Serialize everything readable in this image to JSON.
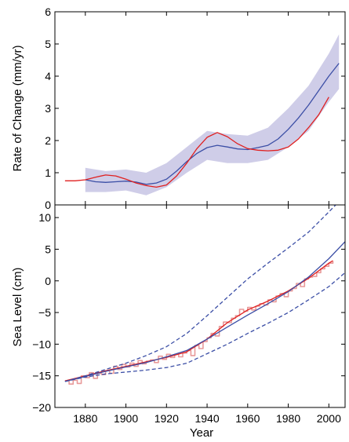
{
  "chart_data": [
    {
      "type": "line",
      "ylabel": "Rate of Change (mm/yr)",
      "xlabel": "",
      "xlim": [
        1865,
        2008
      ],
      "ylim": [
        0,
        6
      ],
      "yticks": [
        0,
        1,
        2,
        3,
        4,
        5,
        6
      ],
      "band": {
        "color": "#cfcde8",
        "x": [
          1880,
          1890,
          1900,
          1910,
          1920,
          1930,
          1940,
          1950,
          1960,
          1970,
          1980,
          1990,
          2000,
          2005
        ],
        "lower": [
          0.4,
          0.4,
          0.45,
          0.3,
          0.55,
          1.0,
          1.4,
          1.3,
          1.3,
          1.4,
          1.8,
          2.3,
          3.2,
          3.6
        ],
        "upper": [
          1.15,
          1.05,
          1.1,
          1.0,
          1.3,
          1.8,
          2.3,
          2.2,
          2.15,
          2.4,
          3.0,
          3.7,
          4.7,
          5.3
        ]
      },
      "series": [
        {
          "color": "#3c4fa6",
          "x": [
            1880,
            1885,
            1890,
            1895,
            1900,
            1905,
            1910,
            1915,
            1920,
            1925,
            1930,
            1935,
            1940,
            1945,
            1950,
            1955,
            1960,
            1965,
            1970,
            1975,
            1980,
            1985,
            1990,
            1995,
            2000,
            2005
          ],
          "y": [
            0.78,
            0.72,
            0.7,
            0.72,
            0.74,
            0.71,
            0.64,
            0.68,
            0.8,
            1.05,
            1.35,
            1.6,
            1.78,
            1.85,
            1.8,
            1.74,
            1.72,
            1.78,
            1.85,
            2.05,
            2.35,
            2.7,
            3.1,
            3.55,
            4.0,
            4.4
          ]
        },
        {
          "color": "#e02020",
          "x": [
            1870,
            1875,
            1880,
            1885,
            1890,
            1895,
            1900,
            1905,
            1910,
            1915,
            1920,
            1925,
            1930,
            1935,
            1940,
            1945,
            1950,
            1955,
            1960,
            1965,
            1970,
            1975,
            1980,
            1985,
            1990,
            1995,
            2000
          ],
          "y": [
            0.75,
            0.75,
            0.78,
            0.86,
            0.93,
            0.9,
            0.8,
            0.68,
            0.6,
            0.55,
            0.62,
            0.9,
            1.3,
            1.75,
            2.1,
            2.25,
            2.12,
            1.9,
            1.75,
            1.7,
            1.68,
            1.7,
            1.8,
            2.05,
            2.4,
            2.8,
            3.35
          ]
        }
      ]
    },
    {
      "type": "line",
      "ylabel": "Sea Level (cm)",
      "xlabel": "Year",
      "xlim": [
        1865,
        2008
      ],
      "ylim": [
        -20,
        12
      ],
      "yticks": [
        -20,
        -15,
        -10,
        -5,
        0,
        5,
        10
      ],
      "xticks": [
        1880,
        1900,
        1920,
        1940,
        1960,
        1980,
        2000
      ],
      "series": [
        {
          "color": "#e89a9a",
          "style": "step",
          "x": [
            1870,
            1872,
            1874,
            1876,
            1878,
            1880,
            1882,
            1884,
            1886,
            1888,
            1890,
            1892,
            1894,
            1896,
            1898,
            1900,
            1902,
            1904,
            1906,
            1908,
            1910,
            1912,
            1914,
            1916,
            1918,
            1920,
            1922,
            1924,
            1926,
            1928,
            1930,
            1932,
            1934,
            1936,
            1938,
            1940,
            1942,
            1944,
            1946,
            1948,
            1950,
            1952,
            1954,
            1956,
            1958,
            1960,
            1962,
            1964,
            1966,
            1968,
            1970,
            1972,
            1974,
            1976,
            1978,
            1980,
            1982,
            1984,
            1986,
            1988,
            1990,
            1992,
            1994,
            1996,
            1998,
            2000,
            2002
          ],
          "y": [
            -15.8,
            -16.3,
            -15.7,
            -16.2,
            -15.0,
            -15.3,
            -14.5,
            -15.4,
            -14.6,
            -14.8,
            -14.2,
            -14.6,
            -13.5,
            -14.0,
            -13.2,
            -13.6,
            -13.0,
            -13.5,
            -12.6,
            -13.1,
            -12.7,
            -12.5,
            -12.9,
            -11.9,
            -12.4,
            -11.6,
            -12.1,
            -11.6,
            -12.0,
            -11.4,
            -11.0,
            -11.8,
            -10.2,
            -10.7,
            -9.6,
            -9.0,
            -8.3,
            -8.7,
            -7.2,
            -6.5,
            -6.6,
            -5.9,
            -5.5,
            -4.5,
            -4.8,
            -4.2,
            -4.6,
            -4.0,
            -3.6,
            -3.8,
            -3.0,
            -3.3,
            -2.4,
            -2.0,
            -2.5,
            -1.6,
            -1.2,
            -0.4,
            -0.9,
            0.3,
            0.6,
            0.7,
            1.3,
            1.9,
            2.3,
            2.8,
            3.1
          ]
        },
        {
          "color": "#e02020",
          "x": [
            1870,
            1880,
            1890,
            1900,
            1910,
            1920,
            1930,
            1940,
            1950,
            1960,
            1970,
            1980,
            1990,
            2000,
            2002
          ],
          "y": [
            -15.8,
            -15.0,
            -14.2,
            -13.5,
            -12.8,
            -12.1,
            -11.2,
            -9.2,
            -6.6,
            -4.6,
            -3.2,
            -1.6,
            0.4,
            2.8,
            3.2
          ]
        },
        {
          "color": "#3c4fa6",
          "x": [
            1870,
            1880,
            1890,
            1900,
            1910,
            1920,
            1930,
            1940,
            1950,
            1960,
            1970,
            1980,
            1990,
            2000,
            2008
          ],
          "y": [
            -15.9,
            -15.1,
            -14.3,
            -13.6,
            -12.9,
            -12.0,
            -11.0,
            -9.2,
            -7.3,
            -5.4,
            -3.6,
            -1.7,
            0.6,
            3.5,
            6.2
          ]
        },
        {
          "color": "#3c4fa6",
          "style": "dashed",
          "x": [
            1870,
            1880,
            1890,
            1900,
            1910,
            1920,
            1930,
            1940,
            1950,
            1960,
            1970,
            1980,
            1990,
            2000,
            2008
          ],
          "y": [
            -15.9,
            -15.0,
            -14.0,
            -13.0,
            -11.8,
            -10.4,
            -8.3,
            -5.5,
            -2.6,
            0.3,
            2.8,
            5.2,
            7.7,
            10.9,
            13.5
          ]
        },
        {
          "color": "#3c4fa6",
          "style": "dashed",
          "x": [
            1870,
            1880,
            1890,
            1900,
            1910,
            1920,
            1930,
            1940,
            1950,
            1960,
            1970,
            1980,
            1990,
            2000,
            2008
          ],
          "y": [
            -15.9,
            -15.2,
            -14.7,
            -14.4,
            -14.1,
            -13.7,
            -13.0,
            -11.5,
            -10.0,
            -8.3,
            -6.7,
            -5.0,
            -3.0,
            -0.9,
            1.3
          ]
        }
      ]
    }
  ]
}
